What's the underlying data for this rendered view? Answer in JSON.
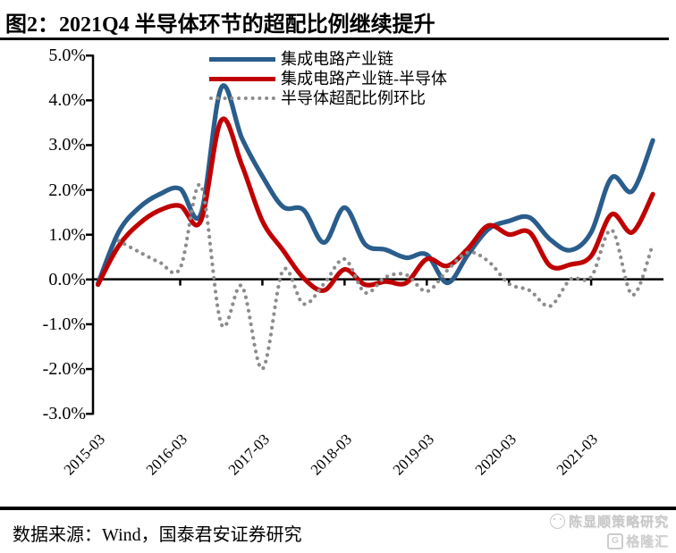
{
  "title": "图2：2021Q4 半导体环节的超配比例继续提升",
  "source_line": "数据来源：Wind，国泰君安证券研究",
  "watermark": {
    "account": "陈显顺策略研究",
    "site": "格隆汇",
    "logo_letter": "G"
  },
  "legend": {
    "items": [
      {
        "label": "集成电路产业链",
        "color": "#2a5d8c",
        "style": "solid"
      },
      {
        "label": "集成电路产业链-半导体",
        "color": "#c00000",
        "style": "solid"
      },
      {
        "label": "半导体超配比例环比",
        "color": "#8c8c8c",
        "style": "dotted"
      }
    ]
  },
  "axis": {
    "y_ticks": [
      "5.0%",
      "4.0%",
      "3.0%",
      "2.0%",
      "1.0%",
      "0.0%",
      "-1.0%",
      "-2.0%",
      "-3.0%"
    ],
    "x_tick_labels": [
      "2015-03",
      "2016-03",
      "2017-03",
      "2018-03",
      "2019-03",
      "2020-03",
      "2021-03"
    ]
  },
  "chart_data": {
    "type": "line",
    "title": "图2：2021Q4 半导体环节的超配比例继续提升",
    "xlabel": "",
    "ylabel": "",
    "y_unit": "percent",
    "ylim": [
      -3.0,
      5.0
    ],
    "y_tick_step": 1.0,
    "grid": false,
    "legend_position": "top-center",
    "line_style": "smooth",
    "categories": [
      "2015-03",
      "2015-06",
      "2015-09",
      "2015-12",
      "2016-03",
      "2016-06",
      "2016-09",
      "2016-12",
      "2017-03",
      "2017-06",
      "2017-09",
      "2017-12",
      "2018-03",
      "2018-06",
      "2018-09",
      "2018-12",
      "2019-03",
      "2019-06",
      "2019-09",
      "2019-12",
      "2020-03",
      "2020-06",
      "2020-09",
      "2020-12",
      "2021-03",
      "2021-06",
      "2021-09",
      "2021-12"
    ],
    "series": [
      {
        "name": "集成电路产业链",
        "color": "#2a5d8c",
        "style": "solid",
        "values": [
          -0.1,
          1.05,
          1.6,
          1.9,
          2.02,
          1.45,
          4.28,
          3.15,
          2.3,
          1.62,
          1.55,
          0.82,
          1.6,
          0.78,
          0.66,
          0.48,
          0.55,
          -0.08,
          0.55,
          1.12,
          1.3,
          1.38,
          0.89,
          0.65,
          1.05,
          2.27,
          1.97,
          3.1
        ]
      },
      {
        "name": "集成电路产业链-半导体",
        "color": "#c00000",
        "style": "solid",
        "values": [
          -0.12,
          0.74,
          1.24,
          1.54,
          1.64,
          1.3,
          3.55,
          2.55,
          1.3,
          0.65,
          0.03,
          -0.25,
          0.22,
          -0.12,
          -0.05,
          -0.08,
          0.45,
          0.3,
          0.68,
          1.2,
          1.0,
          1.05,
          0.3,
          0.33,
          0.52,
          1.45,
          1.05,
          1.9
        ]
      },
      {
        "name": "半导体超配比例环比",
        "color": "#8c8c8c",
        "style": "dotted",
        "values": [
          null,
          0.86,
          0.61,
          0.38,
          0.25,
          2.1,
          -1.0,
          -0.15,
          -2.0,
          0.2,
          -0.55,
          -0.1,
          0.45,
          -0.3,
          0.05,
          0.1,
          -0.27,
          0.2,
          0.6,
          0.4,
          -0.1,
          -0.25,
          -0.6,
          0.0,
          0.05,
          1.1,
          -0.35,
          0.78
        ]
      }
    ]
  }
}
